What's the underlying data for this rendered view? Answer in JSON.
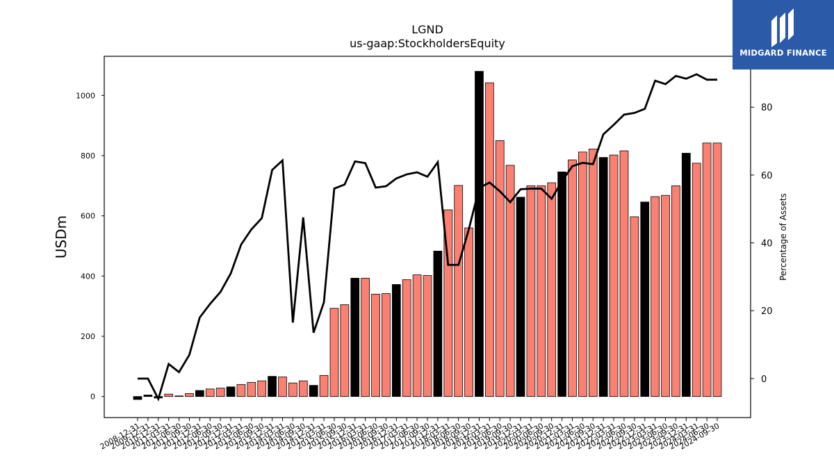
{
  "chart_data": {
    "type": "bar",
    "title": "LGND",
    "subtitle": "us-gaap:StockholdersEquity",
    "ylabel": "USDm",
    "y2label": "Percentage of Assets",
    "ylim": [
      -70,
      1130
    ],
    "y2lim": [
      -11.5,
      95
    ],
    "yticks": [
      0,
      200,
      400,
      600,
      800,
      1000
    ],
    "y2ticks": [
      0,
      20,
      40,
      60,
      80
    ],
    "colors": {
      "q4_bar": "#000000",
      "quarter_bar": "#fa8072",
      "line": "#000000"
    },
    "x": [
      "2008-12-31",
      "2009-12-31",
      "2010-12-31",
      "2011-03-31",
      "2011-06-30",
      "2011-09-30",
      "2011-12-31",
      "2012-06-30",
      "2012-09-30",
      "2012-12-31",
      "2013-03-31",
      "2013-06-30",
      "2013-09-30",
      "2013-12-31",
      "2014-03-31",
      "2014-06-30",
      "2014-09-30",
      "2014-12-31",
      "2015-03-31",
      "2015-06-30",
      "2015-09-30",
      "2015-12-31",
      "2016-03-31",
      "2016-06-30",
      "2016-09-30",
      "2016-12-31",
      "2017-03-31",
      "2017-06-30",
      "2017-09-30",
      "2017-12-31",
      "2018-03-31",
      "2018-06-30",
      "2018-09-30",
      "2018-12-31",
      "2019-03-31",
      "2019-06-30",
      "2019-09-30",
      "2019-12-31",
      "2020-03-31",
      "2020-06-30",
      "2020-09-30",
      "2020-12-31",
      "2021-03-31",
      "2021-06-30",
      "2021-09-30",
      "2021-12-31",
      "2022-03-31",
      "2022-06-30",
      "2022-09-30",
      "2022-12-31",
      "2023-03-31",
      "2023-06-30",
      "2023-09-30",
      "2023-12-31",
      "2024-03-31",
      "2024-06-30",
      "2024-09-30"
    ],
    "series": [
      {
        "type": "bar",
        "axis": "left",
        "values": [
          -10,
          5,
          -5,
          8,
          2,
          10,
          20,
          25,
          28,
          32,
          40,
          47,
          52,
          67,
          65,
          45,
          52,
          37,
          70,
          293,
          305,
          393,
          393,
          340,
          342,
          372,
          388,
          404,
          402,
          483,
          620,
          701,
          560,
          1080,
          1042,
          850,
          768,
          662,
          700,
          700,
          710,
          746,
          786,
          812,
          822,
          794,
          802,
          816,
          597,
          646,
          664,
          668,
          700,
          808,
          775,
          842,
          842
        ]
      },
      {
        "type": "line",
        "axis": "right",
        "values": [
          0,
          0,
          -6,
          4.3,
          1.9,
          7,
          18,
          22,
          25.5,
          31,
          39.5,
          44,
          47.3,
          61.5,
          64.3,
          16.5,
          47.5,
          13.5,
          22.5,
          56,
          57.2,
          64,
          63.5,
          56.3,
          56.7,
          59,
          60.2,
          60.8,
          59.5,
          63.8,
          33.5,
          33.5,
          44,
          56.2,
          57.8,
          55.2,
          52,
          55.8,
          56,
          56,
          53,
          58.2,
          62.6,
          63.6,
          63.2,
          72,
          74.8,
          77.8,
          78.3,
          79.5,
          87.8,
          86.8,
          89.2,
          88.4,
          89.7,
          88.1,
          88.1
        ]
      }
    ]
  },
  "logo": {
    "text": "MIDGARD FINANCE"
  }
}
